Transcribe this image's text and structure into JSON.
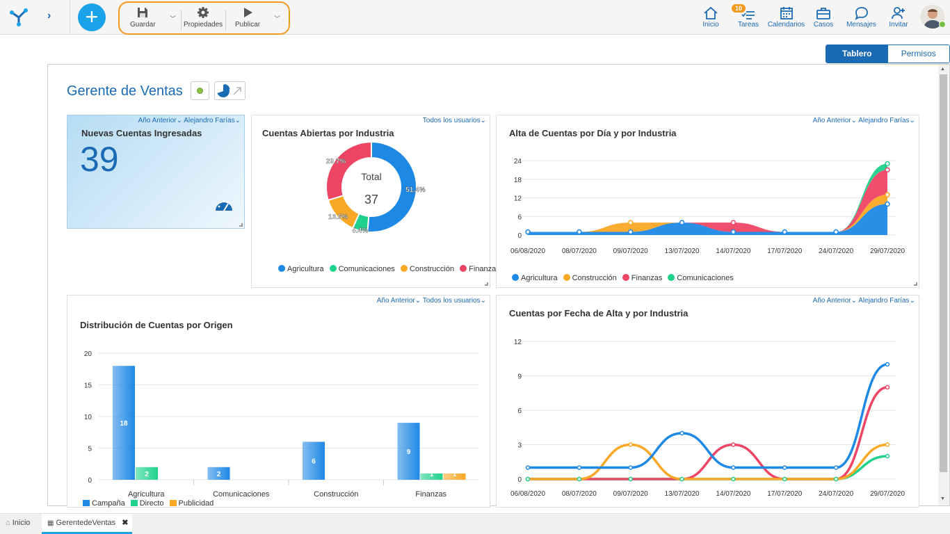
{
  "toolbar": {
    "save_label": "Guardar",
    "properties_label": "Propiedades",
    "publish_label": "Publicar"
  },
  "nav": {
    "home": "Inicio",
    "tasks": "Tareas",
    "tasks_badge": "10",
    "calendars": "Calendarios",
    "cases": "Casos",
    "messages": "Mensajes",
    "invite": "Invitar"
  },
  "view_tabs": {
    "board": "Tablero",
    "permissions": "Permisos"
  },
  "page": {
    "title": "Gerente de Ventas"
  },
  "kpi": {
    "title": "Nuevas Cuentas Ingresadas",
    "value": "39",
    "filter_period": "Año Anterior",
    "filter_user": "Alejandro Farías"
  },
  "donut": {
    "title": "Cuentas Abiertas por Industria",
    "filter_user": "Todos los usuarios",
    "center_label": "Total",
    "center_value": "37"
  },
  "area": {
    "title": "Alta de Cuentas por Día y por Industria",
    "filter_period": "Año Anterior",
    "filter_user": "Alejandro Farías"
  },
  "bar": {
    "title": "Distribución de Cuentas por Origen",
    "filter_period": "Año Anterior",
    "filter_user": "Todos los usuarios"
  },
  "line": {
    "title": "Cuentas por Fecha de Alta y por Industria",
    "filter_period": "Año Anterior",
    "filter_user": "Alejandro Farías"
  },
  "bottom_tabs": {
    "home": "Inicio",
    "dashboard": "GerentedeVentas"
  },
  "colors": {
    "agri": "#1e88e5",
    "com": "#1fd18b",
    "cons": "#f9a825",
    "fin": "#ef4565",
    "brand": "#1b6ab4",
    "accent": "#f39a1e"
  },
  "chart_data": [
    {
      "type": "pie",
      "title": "Cuentas Abiertas por Industria",
      "labels": [
        "Agricultura",
        "Comunicaciones",
        "Construcción",
        "Finanzas"
      ],
      "values": [
        51.4,
        5.4,
        13.5,
        29.7
      ],
      "data_labels": [
        "51.4%",
        "5.4%",
        "13.5%",
        "29.7%"
      ],
      "total": 37,
      "legend": "bottom"
    },
    {
      "type": "area",
      "title": "Alta de Cuentas por Día y por Industria",
      "x": [
        "06/08/2020",
        "08/07/2020",
        "09/07/2020",
        "13/07/2020",
        "14/07/2020",
        "17/07/2020",
        "24/07/2020",
        "29/07/2020"
      ],
      "ylim": [
        0,
        24
      ],
      "yticks": [
        0,
        6,
        12,
        18,
        24
      ],
      "stacked": true,
      "series": [
        {
          "name": "Agricultura",
          "values": [
            1,
            1,
            1,
            4,
            1,
            1,
            1,
            10
          ]
        },
        {
          "name": "Construcción",
          "values": [
            0,
            0,
            3,
            0,
            0,
            0,
            0,
            3
          ]
        },
        {
          "name": "Finanzas",
          "values": [
            0,
            0,
            0,
            0,
            3,
            0,
            0,
            8
          ]
        },
        {
          "name": "Comunicaciones",
          "values": [
            0,
            0,
            0,
            0,
            0,
            0,
            0,
            2
          ]
        }
      ],
      "legend": "bottom"
    },
    {
      "type": "bar",
      "title": "Distribución de Cuentas por Origen",
      "categories": [
        "Agricultura",
        "Comunicaciones",
        "Construcción",
        "Finanzas"
      ],
      "ylim": [
        0,
        20
      ],
      "yticks": [
        0,
        5,
        10,
        15,
        20
      ],
      "series": [
        {
          "name": "Campaña",
          "values": [
            18,
            2,
            6,
            9
          ]
        },
        {
          "name": "Directo",
          "values": [
            2,
            0,
            0,
            1
          ]
        },
        {
          "name": "Publicidad",
          "values": [
            0,
            0,
            0,
            1
          ]
        }
      ],
      "legend": "bottom"
    },
    {
      "type": "line",
      "title": "Cuentas por Fecha de Alta y por Industria",
      "x": [
        "06/08/2020",
        "08/07/2020",
        "09/07/2020",
        "13/07/2020",
        "14/07/2020",
        "17/07/2020",
        "24/07/2020",
        "29/07/2020"
      ],
      "ylim": [
        0,
        12
      ],
      "yticks": [
        0,
        3,
        6,
        9,
        12
      ],
      "series": [
        {
          "name": "Agricultura",
          "values": [
            1,
            1,
            1,
            4,
            1,
            1,
            1,
            10
          ]
        },
        {
          "name": "Construcción",
          "values": [
            0,
            0,
            3,
            0,
            0,
            0,
            0,
            3
          ]
        },
        {
          "name": "Finanzas",
          "values": [
            0,
            0,
            0,
            0,
            3,
            0,
            0,
            8
          ]
        },
        {
          "name": "Comunicaciones",
          "values": [
            0,
            0,
            0,
            0,
            0,
            0,
            0,
            2
          ]
        }
      ]
    }
  ]
}
